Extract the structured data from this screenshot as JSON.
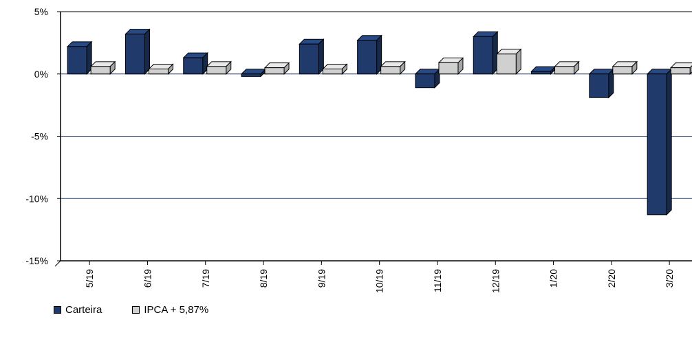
{
  "chart_data": {
    "type": "bar",
    "categories": [
      "5/19",
      "6/19",
      "7/19",
      "8/19",
      "9/19",
      "10/19",
      "11/19",
      "12/19",
      "1/20",
      "2/20",
      "3/20"
    ],
    "series": [
      {
        "name": "Carteira",
        "color": "#1f3a6b",
        "values": [
          2.2,
          3.2,
          1.3,
          -0.2,
          2.4,
          2.7,
          -1.1,
          3.0,
          0.2,
          -1.9,
          -11.3
        ]
      },
      {
        "name": "IPCA + 5,87%",
        "color": "#d0d0d0",
        "values": [
          0.6,
          0.4,
          0.6,
          0.5,
          0.4,
          0.6,
          0.9,
          1.6,
          0.6,
          0.6,
          0.5
        ]
      }
    ],
    "yticks": [
      "5%",
      "0%",
      "-5%",
      "-10%",
      "-15%"
    ],
    "ylim": [
      -15,
      5
    ],
    "grid": true,
    "legend_position": "bottom-left",
    "three_d": true
  },
  "legend": {
    "series1": "Carteira",
    "series2": "IPCA + 5,87%"
  }
}
